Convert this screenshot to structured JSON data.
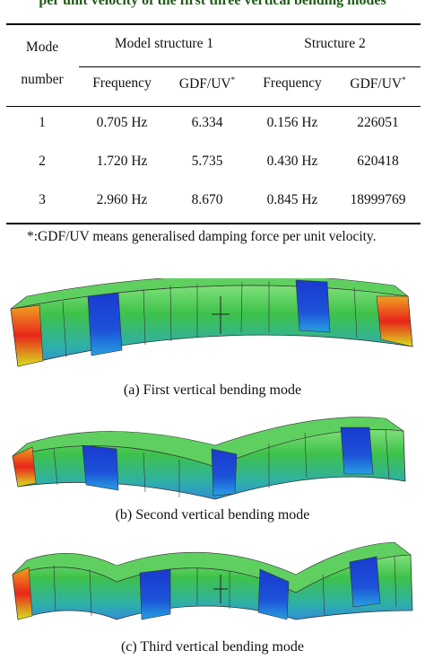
{
  "title": "per unit velocity of the first three vertical bending modes",
  "table": {
    "col_mode_line1": "Mode",
    "col_mode_line2": "number",
    "group1": "Model structure 1",
    "group2": "Structure 2",
    "sub_freq": "Frequency",
    "sub_gdf": "GDF/UV",
    "sub_star": "*",
    "rows": [
      [
        "1",
        "0.705 Hz",
        "6.334",
        "0.156 Hz",
        "226051"
      ],
      [
        "2",
        "1.720 Hz",
        "5.735",
        "0.430 Hz",
        "620418"
      ],
      [
        "3",
        "2.960 Hz",
        "8.670",
        "0.845 Hz",
        "18999769"
      ]
    ]
  },
  "note": "*:GDF/UV means generalised damping force per unit velocity.",
  "captions": {
    "a": "(a) First vertical bending mode",
    "b": "(b) Second vertical bending mode",
    "c": "(c) Third vertical bending mode"
  },
  "colors": {
    "title": "#1f5a17",
    "blue": "#1430c8",
    "green": "#3ec24a",
    "red": "#e8261a"
  }
}
